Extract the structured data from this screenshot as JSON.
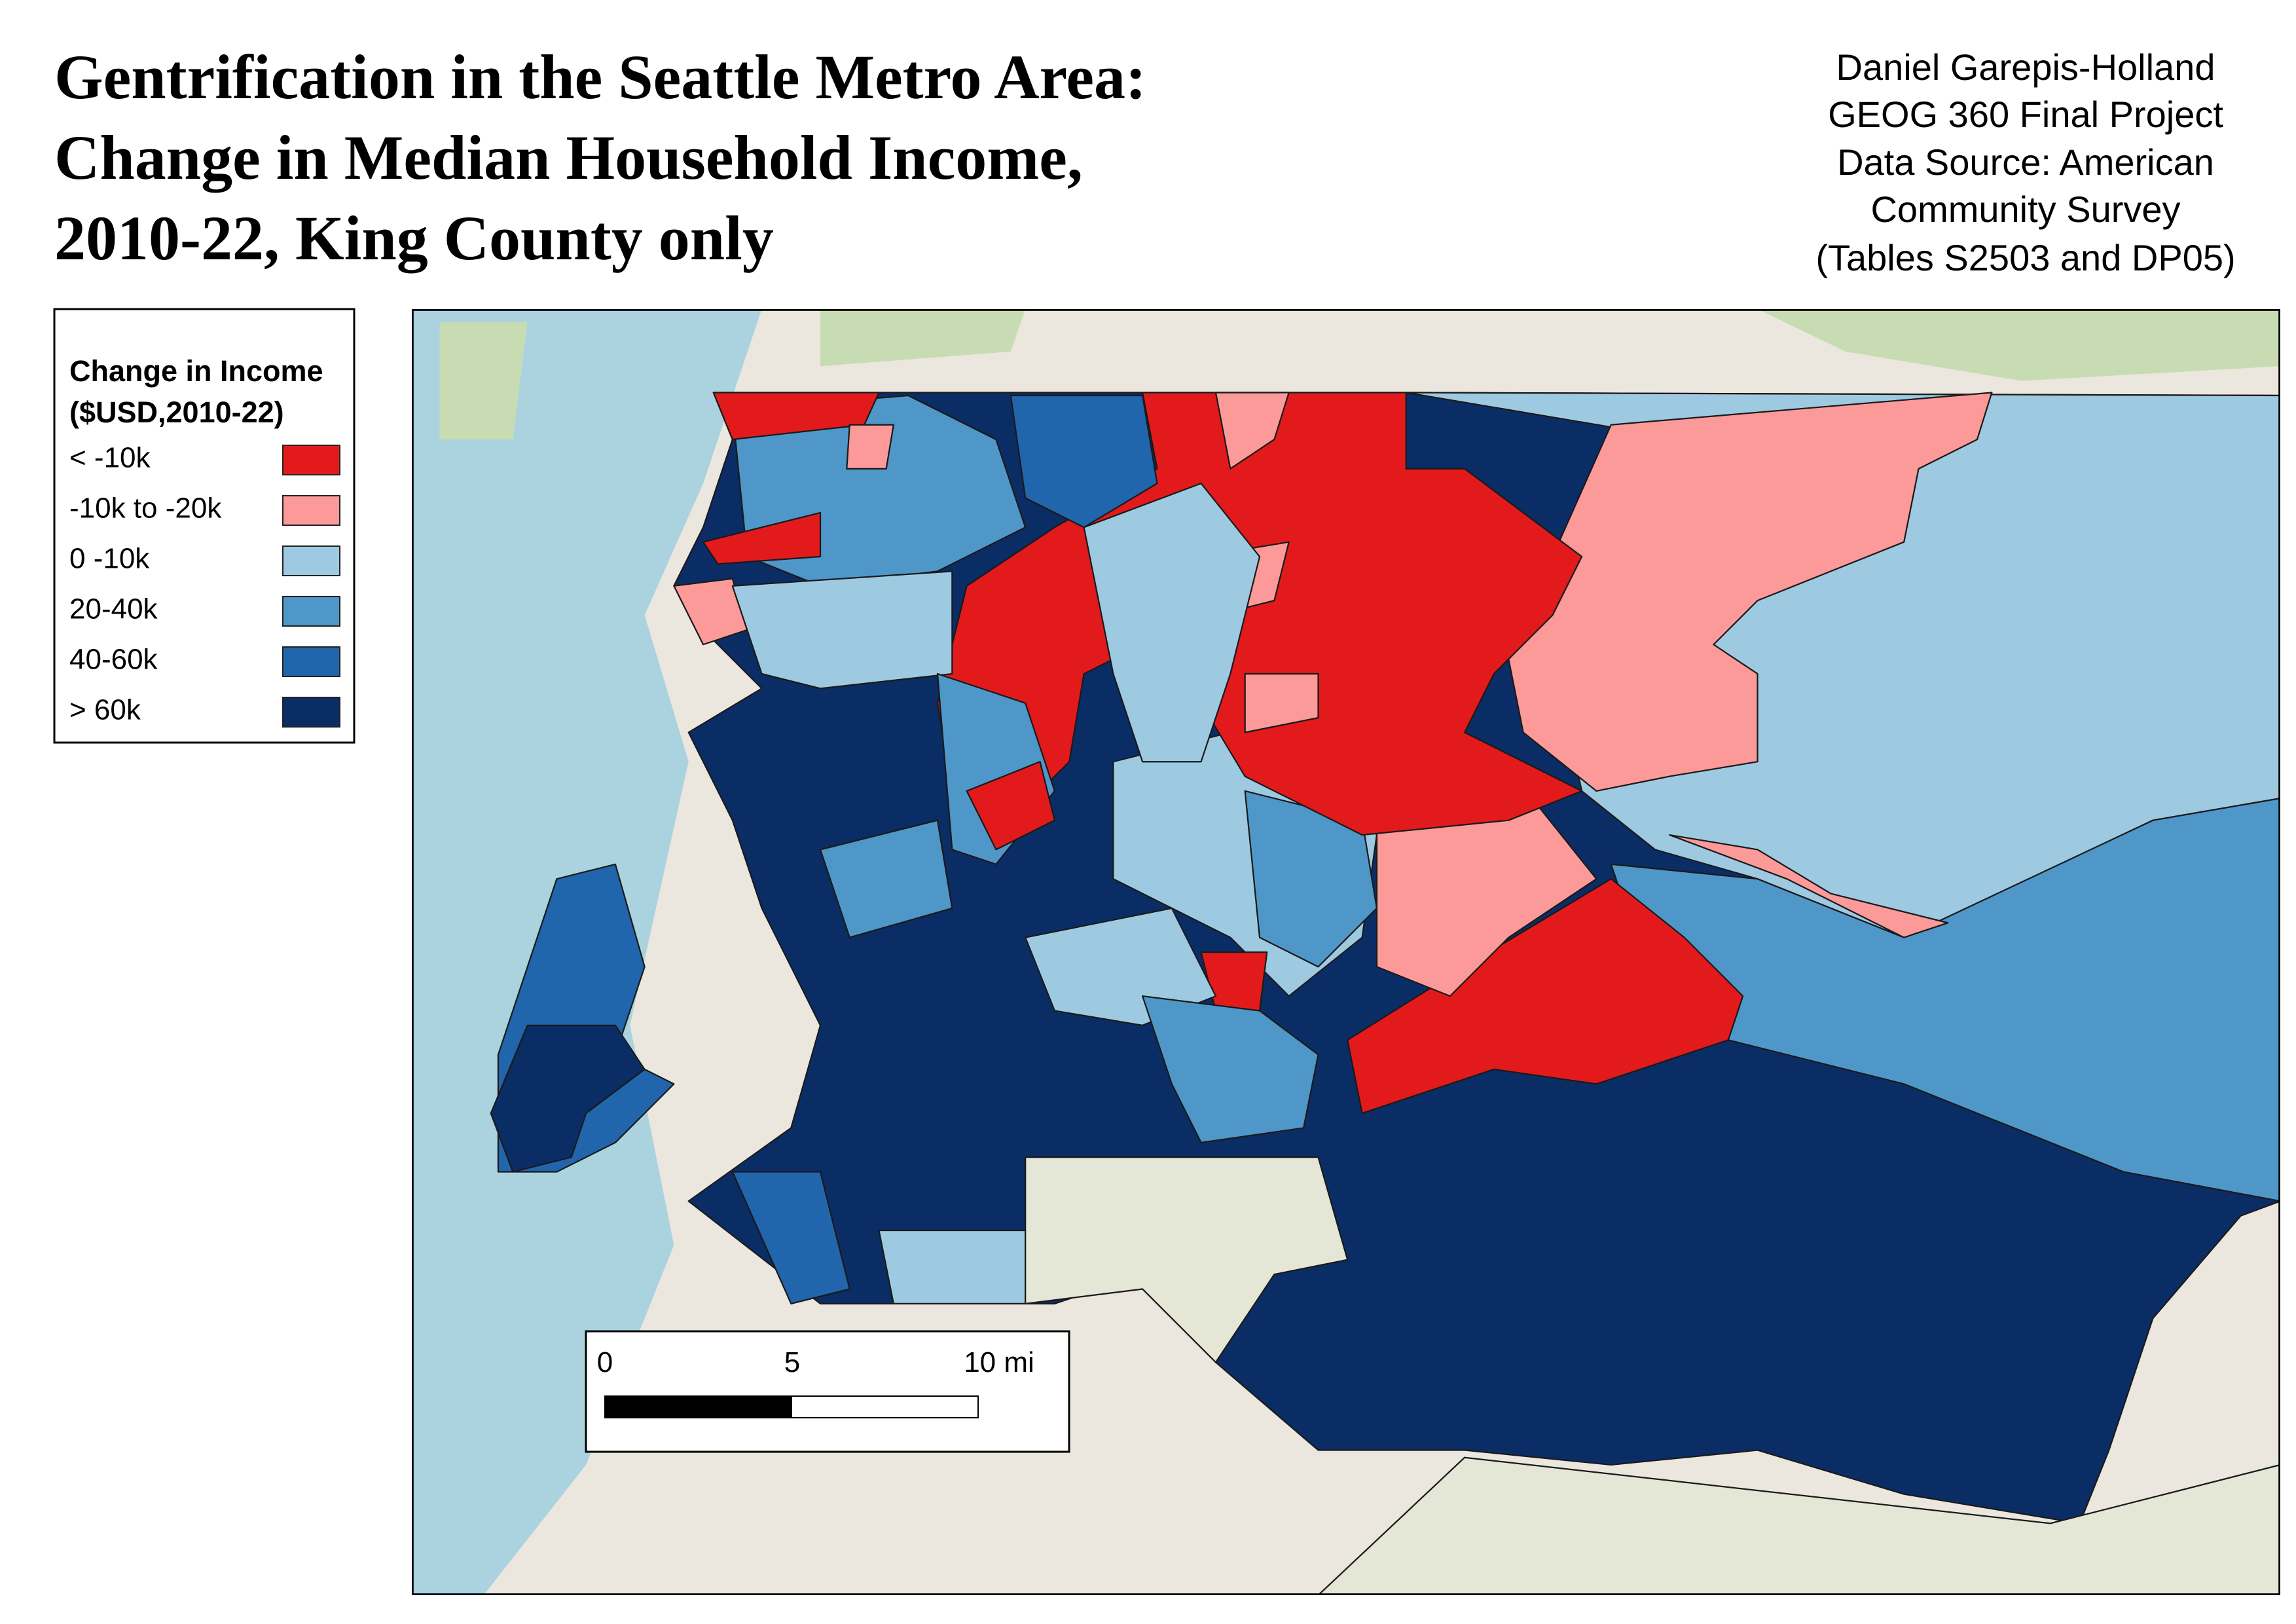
{
  "header": {
    "title_lines": [
      "Gentrification in the Seattle Metro Area:",
      "Change in Median Household Income,",
      "2010-22, King County only"
    ]
  },
  "credits": [
    "Daniel Garepis-Holland",
    "GEOG 360 Final Project",
    "Data Source: American",
    "Community Survey",
    "(Tables S2503 and DP05)"
  ],
  "legend": {
    "title_lines": [
      "Change in Income",
      "($USD,2010-22)"
    ],
    "items": [
      {
        "label": "< -10k",
        "color": "#e31a1c"
      },
      {
        "label": "-10k to -20k",
        "color": "#fb9a99"
      },
      {
        "label": "0 -10k",
        "color": "#9ecae1"
      },
      {
        "label": "20-40k",
        "color": "#4f97c9"
      },
      {
        "label": "40-60k",
        "color": "#2166ac"
      },
      {
        "label": "> 60k",
        "color": "#0b2d66"
      }
    ]
  },
  "scale_bar": {
    "labels": [
      "0",
      "5",
      "10 mi"
    ]
  }
}
